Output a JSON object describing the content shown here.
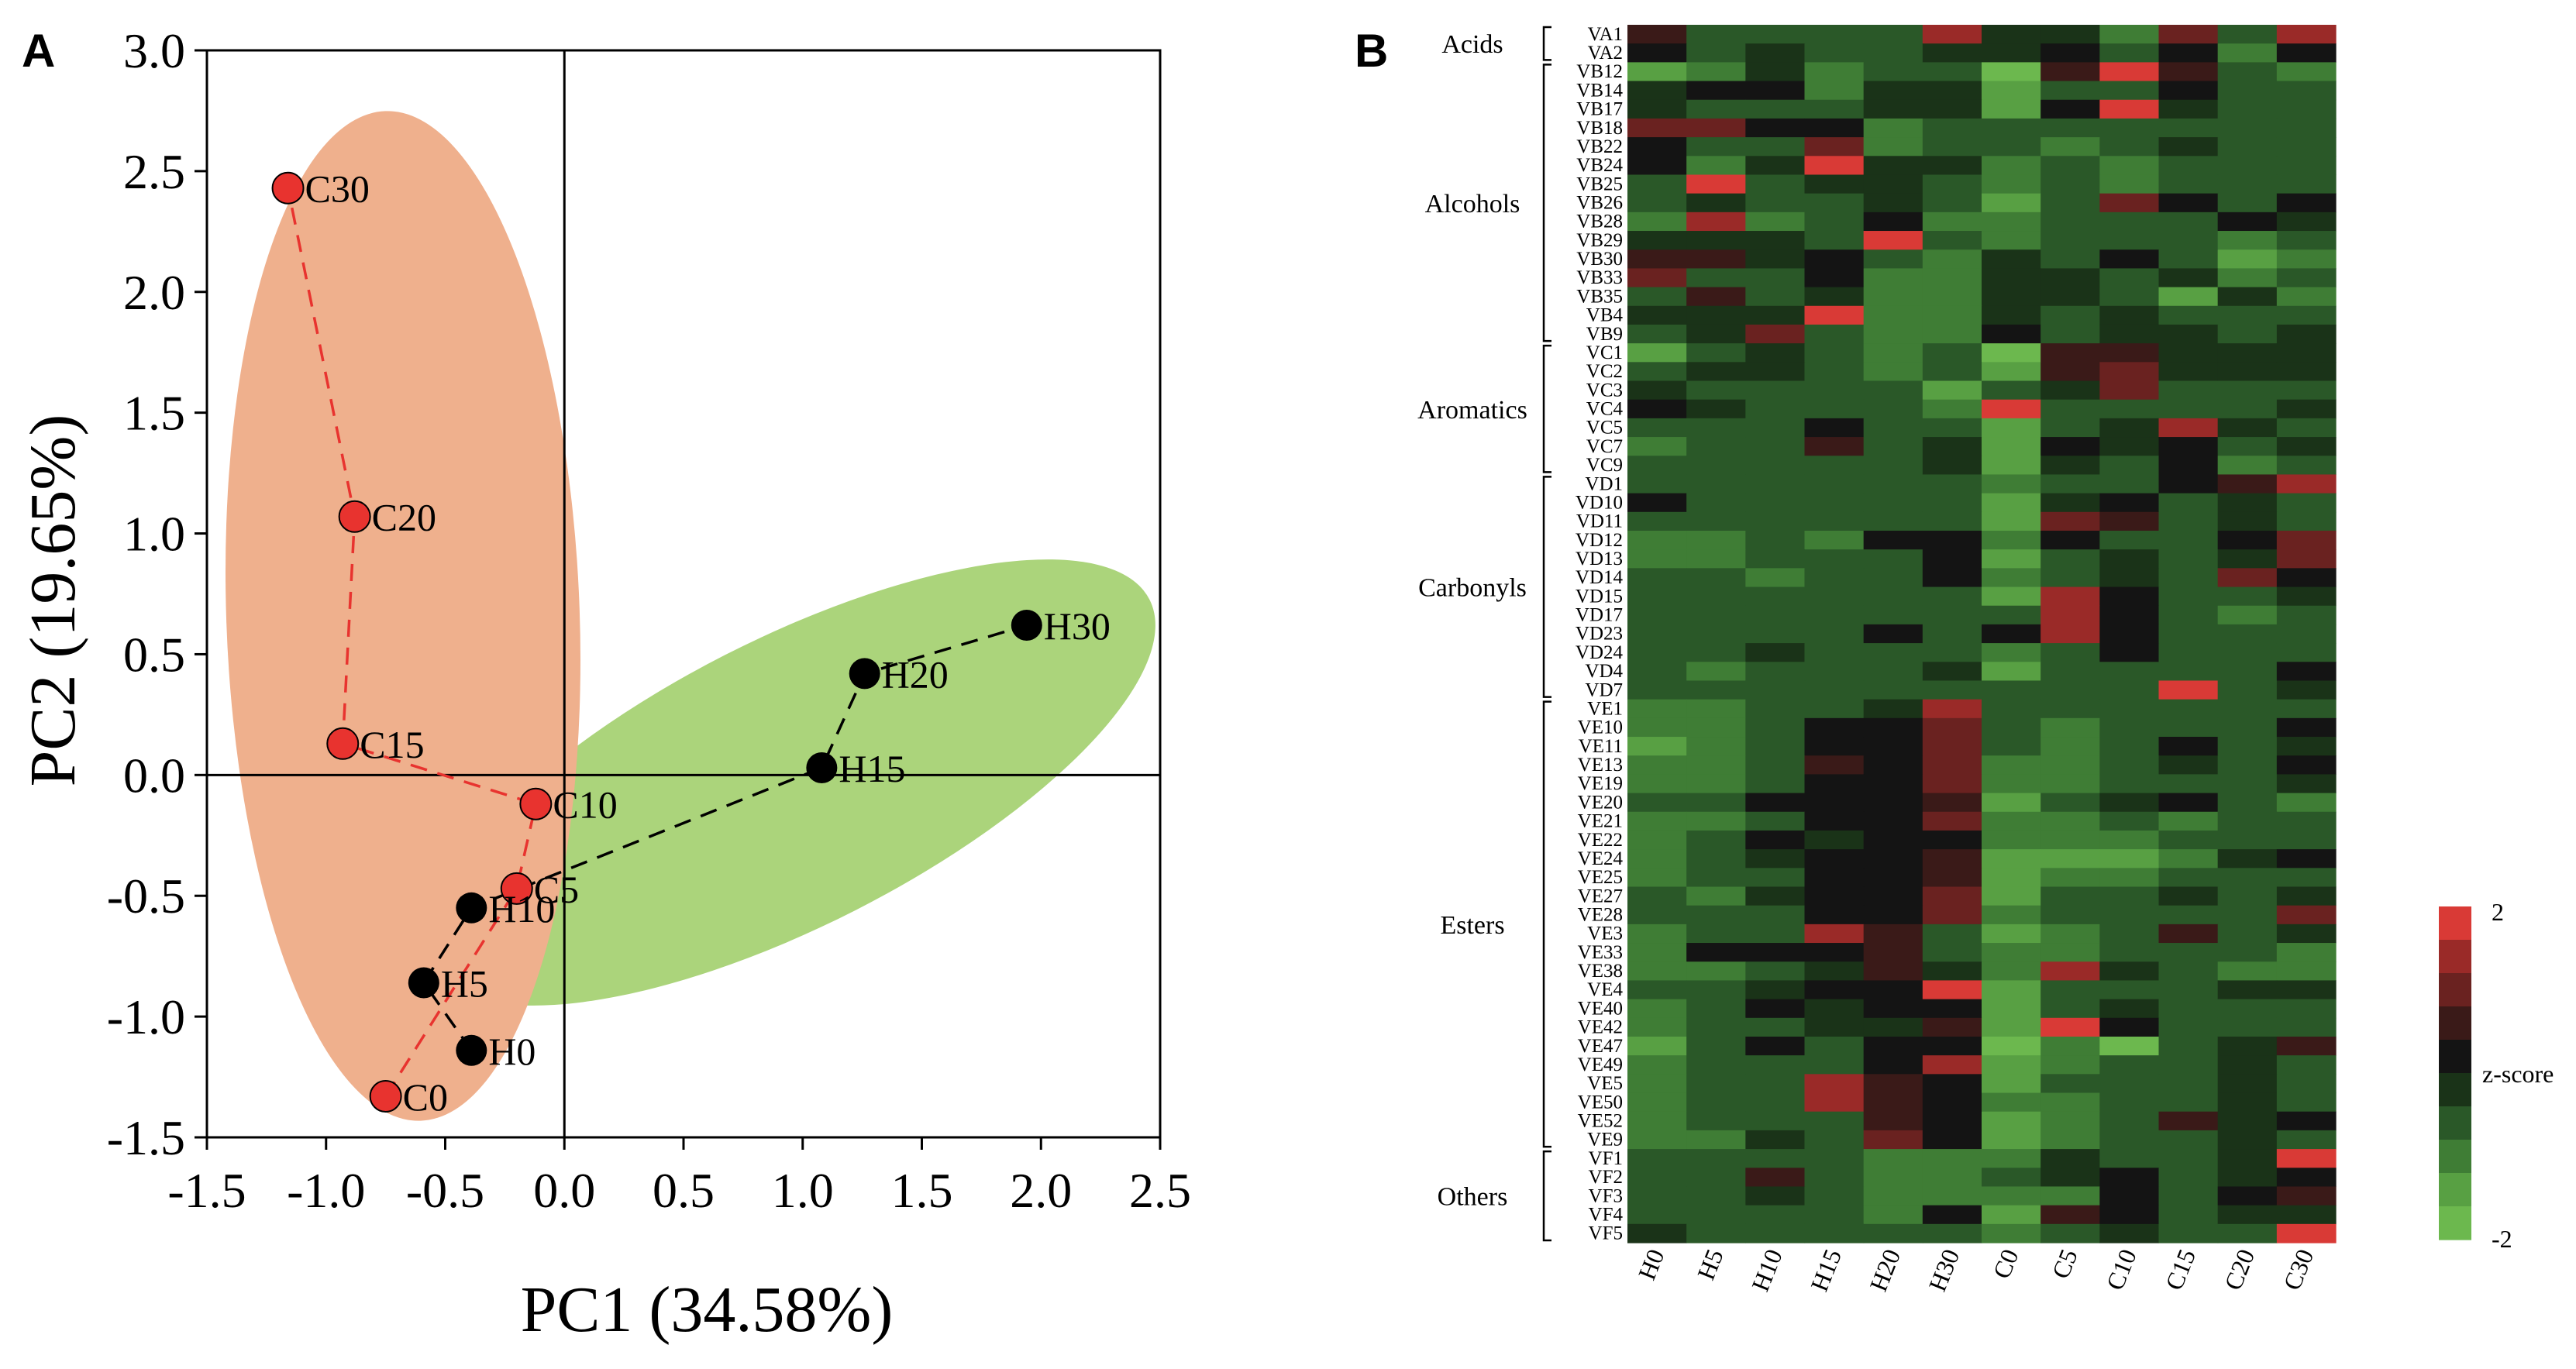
{
  "chart_data": [
    {
      "panel": "A",
      "type": "scatter",
      "xlabel": "PC1 (34.58%)",
      "ylabel": "PC2 (19.65%)",
      "xlim": [
        -1.5,
        2.5
      ],
      "ylim": [
        -1.5,
        3.0
      ],
      "xticks": [
        "-1.5",
        "-1.0",
        "-0.5",
        "0.0",
        "0.5",
        "1.0",
        "1.5",
        "2.0",
        "2.5"
      ],
      "yticks": [
        "3.0",
        "2.5",
        "2.0",
        "1.5",
        "1.0",
        "0.5",
        "0.0",
        "-0.5",
        "-1.0",
        "-1.5"
      ],
      "grid": false,
      "series": [
        {
          "name": "C",
          "color": "#e8332f",
          "line_color": "#e8332f",
          "region_color": "#efb08d",
          "points": [
            {
              "label": "C0",
              "x": -0.75,
              "y": -1.33
            },
            {
              "label": "C5",
              "x": -0.2,
              "y": -0.47
            },
            {
              "label": "C10",
              "x": -0.12,
              "y": -0.12
            },
            {
              "label": "C15",
              "x": -0.93,
              "y": 0.13
            },
            {
              "label": "C20",
              "x": -0.88,
              "y": 1.07
            },
            {
              "label": "C30",
              "x": -1.16,
              "y": 2.43
            }
          ]
        },
        {
          "name": "H",
          "color": "#000000",
          "line_color": "#000000",
          "region_color": "#abd47b",
          "points": [
            {
              "label": "H0",
              "x": -0.39,
              "y": -1.14
            },
            {
              "label": "H5",
              "x": -0.59,
              "y": -0.86
            },
            {
              "label": "H10",
              "x": -0.39,
              "y": -0.55
            },
            {
              "label": "H15",
              "x": 1.08,
              "y": 0.03
            },
            {
              "label": "H20",
              "x": 1.26,
              "y": 0.42
            },
            {
              "label": "H30",
              "x": 1.94,
              "y": 0.62
            }
          ]
        }
      ]
    },
    {
      "panel": "B",
      "type": "heatmap",
      "columns": [
        "H0",
        "H5",
        "H10",
        "H15",
        "H20",
        "H30",
        "C0",
        "C5",
        "C10",
        "C15",
        "C20",
        "C30"
      ],
      "rows": [
        "VA1",
        "VA2",
        "VB12",
        "VB14",
        "VB17",
        "VB18",
        "VB22",
        "VB24",
        "VB25",
        "VB26",
        "VB28",
        "VB29",
        "VB30",
        "VB33",
        "VB35",
        "VB4",
        "VB9",
        "VC1",
        "VC2",
        "VC3",
        "VC4",
        "VC5",
        "VC7",
        "VC9",
        "VD1",
        "VD10",
        "VD11",
        "VD12",
        "VD13",
        "VD14",
        "VD15",
        "VD17",
        "VD23",
        "VD24",
        "VD4",
        "VD7",
        "VE1",
        "VE10",
        "VE11",
        "VE13",
        "VE19",
        "VE20",
        "VE21",
        "VE22",
        "VE24",
        "VE25",
        "VE27",
        "VE28",
        "VE3",
        "VE33",
        "VE38",
        "VE4",
        "VE40",
        "VE42",
        "VE47",
        "VE49",
        "VE5",
        "VE50",
        "VE52",
        "VE9",
        "VF1",
        "VF2",
        "VF3",
        "VF4",
        "VF5"
      ],
      "groups": [
        {
          "name": "Acids",
          "rows": 2
        },
        {
          "name": "Alcohols",
          "rows": 15
        },
        {
          "name": "Aromatics",
          "rows": 7
        },
        {
          "name": "Carbonyls",
          "rows": 12
        },
        {
          "name": "Esters",
          "rows": 24
        },
        {
          "name": "Others",
          "rows": 5
        }
      ],
      "legend": {
        "title": "z-score",
        "max_label": "2",
        "min_label": "-2",
        "range": [
          -2,
          2
        ]
      },
      "colorscale": [
        "#6cb84e",
        "#58a043",
        "#3f7d35",
        "#2a5828",
        "#1a3318",
        "#141414",
        "#3a1a18",
        "#6a2220",
        "#9a2a28",
        "#d93a36"
      ],
      "values": [
        [
          0.7,
          -0.8,
          -0.7,
          -0.8,
          -0.6,
          1.2,
          -0.3,
          -0.4,
          -0.9,
          1.1,
          -0.7,
          1.4
        ],
        [
          0.1,
          -0.6,
          -0.3,
          -0.7,
          -0.5,
          -0.4,
          -0.1,
          0.2,
          -0.6,
          0.1,
          -1.0,
          0.0
        ],
        [
          -1.4,
          -1.0,
          -0.4,
          -0.9,
          -0.6,
          -0.7,
          -1.6,
          0.4,
          1.6,
          0.6,
          -0.7,
          -0.9
        ],
        [
          -0.4,
          0.1,
          0.2,
          -1.2,
          -0.2,
          -0.4,
          -1.5,
          -0.7,
          -0.5,
          0.2,
          -0.8,
          -0.5
        ],
        [
          -0.3,
          -0.6,
          -0.5,
          -0.8,
          -0.4,
          -0.4,
          -1.4,
          0.1,
          1.8,
          -0.2,
          -0.7,
          -0.6
        ],
        [
          0.8,
          1.0,
          0.1,
          0.0,
          -1.1,
          -0.8,
          -0.8,
          -0.6,
          -0.7,
          -0.6,
          -0.8,
          -0.6
        ],
        [
          0.3,
          -0.7,
          -0.6,
          1.1,
          -1.0,
          -0.8,
          -0.5,
          -1.0,
          -0.5,
          -0.2,
          -0.8,
          -0.7
        ],
        [
          0.2,
          -0.9,
          -0.3,
          1.9,
          -0.4,
          -0.4,
          -0.9,
          -0.6,
          -0.9,
          -0.7,
          -0.8,
          -0.8
        ],
        [
          -0.5,
          1.7,
          -0.6,
          -0.1,
          -0.3,
          -0.6,
          -0.9,
          -0.6,
          -1.0,
          -0.6,
          -0.7,
          -0.7
        ],
        [
          -0.6,
          -0.4,
          -0.7,
          -0.6,
          -0.2,
          -0.6,
          -1.3,
          -0.8,
          0.8,
          0.0,
          -0.8,
          0.2
        ],
        [
          -1.0,
          1.5,
          -0.9,
          -0.6,
          0.1,
          -1.2,
          -0.9,
          -0.7,
          -0.7,
          -0.5,
          0.2,
          -0.4
        ],
        [
          -0.3,
          -0.3,
          -0.4,
          -0.6,
          1.6,
          -0.7,
          -0.9,
          -0.6,
          -0.6,
          -0.7,
          -0.9,
          -0.7
        ],
        [
          0.6,
          0.7,
          -0.4,
          0.2,
          -0.8,
          -0.9,
          -0.3,
          -0.6,
          0.3,
          -0.5,
          -1.3,
          -1.2
        ],
        [
          1.0,
          -0.8,
          -0.7,
          0.1,
          -1.1,
          -1.1,
          -0.4,
          -0.2,
          -0.6,
          -0.4,
          -1.1,
          -0.6
        ],
        [
          -0.7,
          0.4,
          -0.5,
          -0.1,
          -1.1,
          -1.0,
          -0.4,
          -0.3,
          -0.6,
          -1.3,
          -0.3,
          -0.9
        ],
        [
          -0.3,
          -0.2,
          -0.4,
          1.8,
          -1.0,
          -1.0,
          -0.4,
          -0.5,
          -0.4,
          -0.7,
          -0.6,
          -0.7
        ],
        [
          -0.6,
          -0.4,
          1.1,
          -0.8,
          -0.9,
          -0.9,
          0.2,
          -0.5,
          -0.3,
          -0.3,
          -0.5,
          -0.4
        ],
        [
          -1.4,
          -0.8,
          -0.4,
          -0.7,
          -1.0,
          -0.8,
          -1.6,
          0.7,
          0.4,
          -0.2,
          -0.4,
          -0.3
        ],
        [
          -0.7,
          -0.4,
          -0.4,
          -0.7,
          -1.2,
          -0.8,
          -1.3,
          0.4,
          1.0,
          -0.4,
          -0.3,
          -0.3
        ],
        [
          -0.3,
          -0.6,
          -0.6,
          -0.6,
          -0.5,
          -1.3,
          -0.8,
          -0.1,
          1.0,
          -0.5,
          -0.6,
          -0.5
        ],
        [
          0.1,
          -0.1,
          -0.7,
          -0.7,
          -0.6,
          -1.0,
          1.8,
          -0.6,
          -0.6,
          -0.7,
          -0.6,
          -0.3
        ],
        [
          -0.7,
          -0.8,
          -0.7,
          0.0,
          -0.6,
          -0.8,
          -1.4,
          -0.7,
          -0.4,
          1.4,
          -0.4,
          -0.5
        ],
        [
          -0.9,
          -0.6,
          -0.6,
          0.7,
          -0.8,
          -0.2,
          -1.5,
          0.0,
          -0.4,
          0.2,
          -0.5,
          -0.4
        ],
        [
          -0.7,
          -0.7,
          -0.6,
          -0.8,
          -0.8,
          -0.3,
          -1.5,
          -0.4,
          -0.7,
          0.0,
          -1.0,
          -0.6
        ],
        [
          -0.7,
          -0.6,
          -0.7,
          -0.8,
          -0.6,
          -0.8,
          -1.2,
          -0.5,
          -0.5,
          0.0,
          0.5,
          1.2
        ],
        [
          0.2,
          -0.5,
          -0.6,
          -0.7,
          -0.6,
          -0.8,
          -1.4,
          -0.4,
          0.0,
          -0.6,
          -0.4,
          -0.6
        ],
        [
          -0.7,
          -0.7,
          -0.7,
          -0.8,
          -0.7,
          -0.7,
          -1.3,
          1.0,
          0.7,
          -0.5,
          -0.3,
          -0.5
        ],
        [
          -1.0,
          -1.0,
          -0.8,
          -1.0,
          0.0,
          0.2,
          -1.2,
          0.2,
          -0.6,
          -0.5,
          0.1,
          0.9
        ],
        [
          -0.9,
          -1.0,
          -0.7,
          -0.8,
          -0.5,
          0.0,
          -1.4,
          -0.6,
          -0.4,
          -0.5,
          -0.4,
          0.8
        ],
        [
          -0.8,
          -0.7,
          -1.2,
          -0.8,
          -0.5,
          0.0,
          -1.2,
          -0.6,
          -0.4,
          -0.5,
          0.8,
          0.0
        ],
        [
          -0.8,
          -0.7,
          -0.6,
          -0.7,
          -0.6,
          -0.6,
          -1.4,
          1.4,
          0.3,
          -0.6,
          -0.7,
          -0.4
        ],
        [
          -0.7,
          -0.7,
          -0.6,
          -0.8,
          -0.6,
          -0.8,
          -0.8,
          1.5,
          0.1,
          -0.7,
          -1.2,
          -0.6
        ],
        [
          -0.7,
          -0.7,
          -0.5,
          -0.8,
          0.0,
          -0.6,
          0.2,
          1.4,
          0.0,
          -0.8,
          -0.7,
          -0.6
        ],
        [
          -0.7,
          -0.6,
          -0.4,
          -0.8,
          -0.7,
          -0.8,
          -1.0,
          -0.6,
          0.3,
          -0.8,
          -0.8,
          -0.7
        ],
        [
          -0.7,
          -0.9,
          -0.5,
          -0.5,
          -0.5,
          -0.4,
          -1.4,
          -0.6,
          -0.6,
          -0.6,
          -0.6,
          0.3
        ],
        [
          -0.5,
          -0.5,
          -0.6,
          -0.6,
          -0.8,
          -0.6,
          -0.8,
          -0.6,
          -0.7,
          1.9,
          -0.5,
          -0.4
        ],
        [
          -1.2,
          -1.2,
          -0.8,
          -0.5,
          -0.2,
          1.2,
          -0.8,
          -0.8,
          -0.6,
          -0.7,
          -0.6,
          -0.5
        ],
        [
          -1.2,
          -1.2,
          -0.8,
          0.2,
          0.3,
          1.0,
          -0.8,
          -1.1,
          -0.5,
          -0.7,
          -0.6,
          0.0
        ],
        [
          -1.3,
          -1.0,
          -0.8,
          0.0,
          0.1,
          1.0,
          -0.8,
          -0.9,
          -0.6,
          0.0,
          -0.7,
          -0.2
        ],
        [
          -1.1,
          -1.0,
          -0.6,
          0.7,
          0.3,
          0.8,
          -0.9,
          -1.0,
          -0.6,
          -0.4,
          -0.6,
          0.1
        ],
        [
          -0.9,
          -0.9,
          -0.7,
          0.1,
          0.2,
          0.8,
          -1.2,
          -1.0,
          -0.7,
          -0.6,
          -0.5,
          -0.2
        ],
        [
          -0.8,
          -0.7,
          0.1,
          0.1,
          0.3,
          0.4,
          -1.3,
          -0.7,
          -0.2,
          0.0,
          -0.6,
          -1.2
        ],
        [
          -0.9,
          -1.0,
          -0.6,
          0.1,
          0.3,
          1.0,
          -1.2,
          -1.1,
          -0.8,
          -0.9,
          -0.6,
          -0.5
        ],
        [
          -1.2,
          -0.8,
          0.0,
          -0.1,
          0.1,
          0.2,
          -1.2,
          -1.2,
          -1.0,
          -0.8,
          -0.5,
          -0.6
        ],
        [
          -1.1,
          -0.6,
          -0.4,
          0.1,
          0.1,
          0.4,
          -1.3,
          -1.4,
          -1.4,
          -0.9,
          -0.3,
          0.0
        ],
        [
          -1.0,
          -0.8,
          -0.6,
          0.3,
          0.2,
          0.4,
          -1.3,
          -1.2,
          -1.0,
          -0.7,
          -0.6,
          -0.6
        ],
        [
          -0.8,
          -0.9,
          -0.4,
          0.0,
          0.1,
          0.8,
          -1.3,
          -0.8,
          -0.8,
          -0.3,
          -0.5,
          -0.4
        ],
        [
          -0.8,
          -0.5,
          -0.6,
          0.0,
          0.0,
          0.9,
          -1.2,
          -0.8,
          -0.8,
          -0.5,
          -0.6,
          0.8
        ],
        [
          -1.1,
          -0.8,
          -0.6,
          1.2,
          0.4,
          -0.6,
          -1.3,
          -1.0,
          -0.6,
          0.5,
          -0.7,
          -0.4
        ],
        [
          -1.0,
          0.0,
          0.0,
          0.2,
          0.7,
          -0.6,
          -1.0,
          -0.9,
          -0.5,
          -0.7,
          -0.8,
          -0.9
        ],
        [
          -0.9,
          -1.2,
          -0.8,
          -0.3,
          0.4,
          -0.3,
          -1.2,
          1.2,
          -0.1,
          -0.7,
          -0.9,
          -1.1
        ],
        [
          -0.8,
          -0.6,
          -0.4,
          0.0,
          0.0,
          1.9,
          -1.4,
          -0.6,
          -0.5,
          -0.6,
          -0.2,
          -0.4
        ],
        [
          -1.0,
          -0.7,
          0.0,
          -0.1,
          0.0,
          0.3,
          -1.5,
          -0.6,
          -0.4,
          -0.7,
          -0.6,
          -0.5
        ],
        [
          -1.0,
          -0.7,
          -0.6,
          -0.1,
          -0.1,
          0.4,
          -1.4,
          1.9,
          0.2,
          -0.7,
          -0.6,
          -0.6
        ],
        [
          -1.3,
          -0.8,
          0.0,
          -0.7,
          0.0,
          0.1,
          -1.6,
          -1.2,
          -1.6,
          -0.7,
          -0.3,
          0.4
        ],
        [
          -1.2,
          -0.8,
          -0.6,
          -0.8,
          0.1,
          1.2,
          -1.4,
          -1.0,
          -0.8,
          -0.8,
          -0.4,
          -0.7
        ],
        [
          -1.2,
          -0.8,
          -0.6,
          1.3,
          0.4,
          0.2,
          -1.3,
          -0.7,
          -0.6,
          -0.8,
          -0.3,
          -0.6
        ],
        [
          -1.0,
          -0.8,
          -0.5,
          1.2,
          0.6,
          0.1,
          -1.2,
          -1.1,
          -0.8,
          -0.7,
          -0.3,
          -0.6
        ],
        [
          -0.9,
          -0.8,
          -0.6,
          -0.8,
          0.4,
          0.2,
          -1.4,
          -1.0,
          -0.7,
          0.6,
          -0.3,
          0.1
        ],
        [
          -1.2,
          -0.9,
          -0.4,
          -0.5,
          0.9,
          0.2,
          -1.3,
          -0.9,
          -0.8,
          -0.8,
          -0.3,
          -0.7
        ],
        [
          -0.8,
          -0.7,
          -0.6,
          -0.8,
          -1.0,
          -1.0,
          -1.0,
          -0.1,
          -0.6,
          -0.6,
          -0.3,
          1.8
        ],
        [
          -0.8,
          -0.8,
          0.6,
          -0.8,
          -1.0,
          -0.9,
          -0.6,
          -0.3,
          0.2,
          -0.5,
          -0.3,
          0.2
        ],
        [
          -0.8,
          -0.7,
          -0.3,
          -0.7,
          -1.0,
          -0.9,
          -1.0,
          -0.9,
          0.0,
          -0.6,
          0.0,
          0.4
        ],
        [
          -0.7,
          -0.7,
          -0.6,
          -0.7,
          -0.9,
          0.2,
          -1.4,
          0.4,
          0.2,
          -0.6,
          -0.2,
          -0.4
        ],
        [
          -0.4,
          -0.6,
          -0.6,
          -0.7,
          -0.8,
          -0.8,
          -1.0,
          -0.8,
          -0.1,
          -0.7,
          -0.6,
          1.8
        ]
      ]
    }
  ]
}
